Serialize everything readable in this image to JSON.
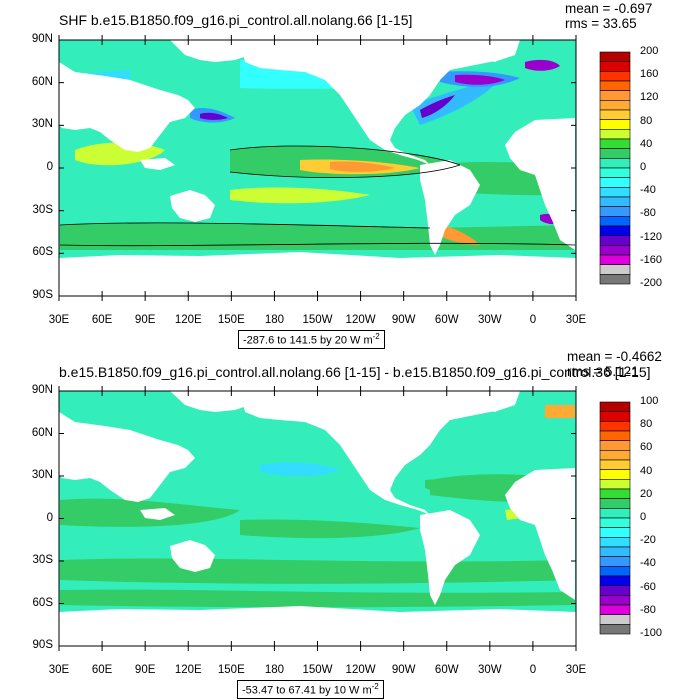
{
  "panels": [
    {
      "title": "SHF b.e15.B1850.f09_g16.pi_control.all.nolang.66 [1-15]",
      "mean": "mean = -0.697",
      "rms": "rms = 33.65",
      "y_ticks": [
        "90N",
        "60N",
        "30N",
        "0",
        "30S",
        "60S",
        "90S"
      ],
      "x_ticks": [
        "30E",
        "60E",
        "90E",
        "120E",
        "150E",
        "180",
        "150W",
        "120W",
        "90W",
        "60W",
        "30W",
        "0",
        "30E"
      ],
      "range_label": "-287.6 to 141.5 by 20  W m",
      "units_sup": "-2",
      "colorbar_labels": [
        "200",
        "160",
        "120",
        "80",
        "40",
        "0",
        "-40",
        "-80",
        "-120",
        "-160",
        "-200"
      ],
      "colorbar_colors": [
        "#b50000",
        "#dd0000",
        "#ff3300",
        "#ff6600",
        "#ff9933",
        "#ffaa33",
        "#ffcc33",
        "#ffff00",
        "#ccff33",
        "#33dd33",
        "#33cc66",
        "#33eebb",
        "#33ffdd",
        "#33ffff",
        "#33ddff",
        "#33bbff",
        "#3399ff",
        "#0066ff",
        "#0000ee",
        "#6600cc",
        "#9900cc",
        "#dd00dd",
        "#cccccc",
        "#777777"
      ],
      "contour_values": {
        "min": -287.6,
        "max": 141.5,
        "interval": 20
      }
    },
    {
      "title": "b.e15.B1850.f09_g16.pi_control.all.nolang.66 [1-15] - b.e15.B1850.f09_g16.pi_control.36 [1-15]",
      "mean": "mean = -0.4662",
      "rms": "rms = 5.121",
      "y_ticks": [
        "90N",
        "60N",
        "30N",
        "0",
        "30S",
        "60S",
        "90S"
      ],
      "x_ticks": [
        "30E",
        "60E",
        "90E",
        "120E",
        "150E",
        "180",
        "150W",
        "120W",
        "90W",
        "60W",
        "30W",
        "0",
        "30E"
      ],
      "range_label": "-53.47 to 67.41 by 10  W m",
      "units_sup": "-2",
      "colorbar_labels": [
        "100",
        "80",
        "60",
        "40",
        "20",
        "0",
        "-20",
        "-40",
        "-60",
        "-80",
        "-100"
      ],
      "colorbar_colors": [
        "#b50000",
        "#dd0000",
        "#ff3300",
        "#ff6600",
        "#ff9933",
        "#ffaa33",
        "#ffcc33",
        "#ffff00",
        "#ccff33",
        "#33dd33",
        "#33cc66",
        "#33eebb",
        "#33ffdd",
        "#33ffff",
        "#33ddff",
        "#33bbff",
        "#3399ff",
        "#0066ff",
        "#0000ee",
        "#6600cc",
        "#9900cc",
        "#dd00dd",
        "#cccccc",
        "#777777"
      ],
      "contour_values": {
        "min": -53.47,
        "max": 67.41,
        "interval": 10
      }
    }
  ],
  "colors": {
    "ocean_main": "#33eebb",
    "ocean_warm": "#33cc66",
    "land": "#ffffff"
  }
}
